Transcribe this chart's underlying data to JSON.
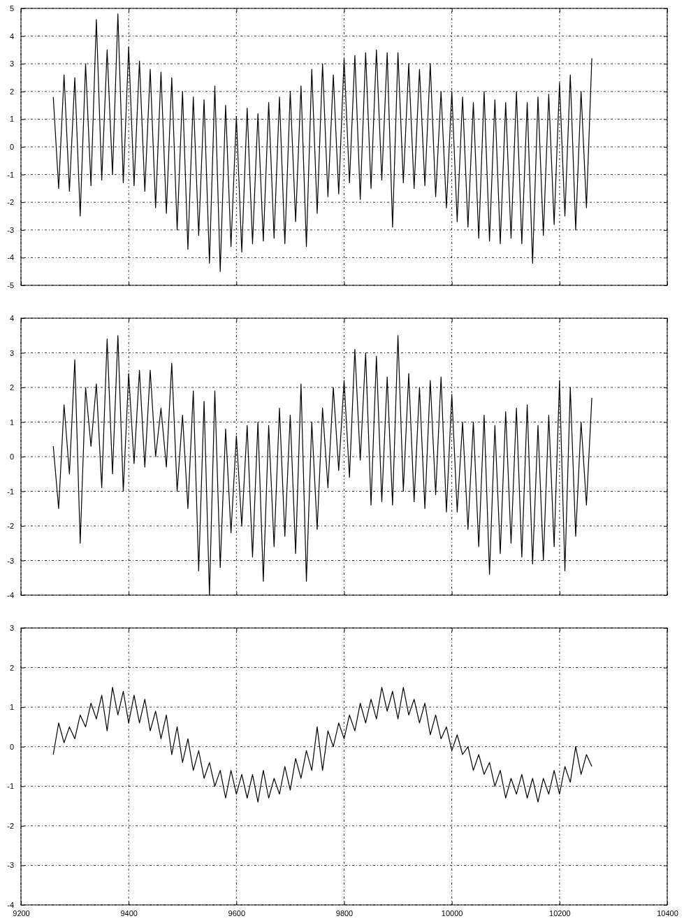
{
  "chart_data": [
    {
      "type": "line",
      "tick_labels": "y",
      "grid": true,
      "xlim": [
        9200,
        10400
      ],
      "xticks": [
        9200,
        9400,
        9600,
        9800,
        10000,
        10200,
        10400
      ],
      "ylim": [
        -5,
        5
      ],
      "yticks": [
        -5,
        -4,
        -3,
        -2,
        -1,
        0,
        1,
        2,
        3,
        4,
        5
      ],
      "x": [
        9260,
        9270,
        9280,
        9290,
        9300,
        9310,
        9320,
        9330,
        9340,
        9350,
        9360,
        9370,
        9380,
        9390,
        9400,
        9410,
        9420,
        9430,
        9440,
        9450,
        9460,
        9470,
        9480,
        9490,
        9500,
        9510,
        9520,
        9530,
        9540,
        9550,
        9560,
        9570,
        9580,
        9590,
        9600,
        9610,
        9620,
        9630,
        9640,
        9650,
        9660,
        9670,
        9680,
        9690,
        9700,
        9710,
        9720,
        9730,
        9740,
        9750,
        9760,
        9770,
        9780,
        9790,
        9800,
        9810,
        9820,
        9830,
        9840,
        9850,
        9860,
        9870,
        9880,
        9890,
        9900,
        9910,
        9920,
        9930,
        9940,
        9950,
        9960,
        9970,
        9980,
        9990,
        10000,
        10010,
        10020,
        10030,
        10040,
        10050,
        10060,
        10070,
        10080,
        10090,
        10100,
        10110,
        10120,
        10130,
        10140,
        10150,
        10160,
        10170,
        10180,
        10190,
        10200,
        10210,
        10220,
        10230,
        10240,
        10250,
        10260
      ],
      "series": [
        {
          "color": "#000000",
          "values": [
            1.8,
            -1.5,
            2.6,
            -1.6,
            2.5,
            -2.5,
            3.0,
            -1.4,
            4.6,
            -1.2,
            3.5,
            -1.0,
            4.8,
            -1.3,
            3.6,
            -1.4,
            3.1,
            -1.6,
            2.8,
            -2.2,
            2.7,
            -2.4,
            2.5,
            -3.0,
            2.0,
            -3.7,
            1.8,
            -3.2,
            1.7,
            -4.2,
            2.2,
            -4.5,
            1.5,
            -3.6,
            1.1,
            -3.8,
            1.4,
            -3.5,
            1.2,
            -3.4,
            1.6,
            -3.3,
            1.8,
            -3.5,
            2.0,
            -2.7,
            2.2,
            -3.6,
            2.8,
            -2.4,
            3.0,
            -1.8,
            2.6,
            -1.7,
            3.2,
            -1.3,
            3.3,
            -1.9,
            3.4,
            -1.5,
            3.5,
            -1.2,
            3.4,
            -2.9,
            3.4,
            -1.3,
            3.0,
            -1.5,
            2.8,
            -1.4,
            3.0,
            -1.8,
            2.0,
            -2.2,
            2.0,
            -2.7,
            1.8,
            -2.9,
            1.6,
            -3.3,
            2.0,
            -3.4,
            1.7,
            -3.5,
            1.6,
            -3.3,
            2.0,
            -3.5,
            1.6,
            -4.2,
            1.8,
            -3.2,
            1.9,
            -2.8,
            2.3,
            -2.5,
            2.6,
            -3.0,
            2.0,
            -2.2,
            3.2
          ]
        }
      ]
    },
    {
      "type": "line",
      "tick_labels": "y",
      "grid": true,
      "xlim": [
        9200,
        10400
      ],
      "xticks": [
        9200,
        9400,
        9600,
        9800,
        10000,
        10200,
        10400
      ],
      "ylim": [
        -4,
        4
      ],
      "yticks": [
        -4,
        -3,
        -2,
        -1,
        0,
        1,
        2,
        3,
        4
      ],
      "x": [
        9260,
        9270,
        9280,
        9290,
        9300,
        9310,
        9320,
        9330,
        9340,
        9350,
        9360,
        9370,
        9380,
        9390,
        9400,
        9410,
        9420,
        9430,
        9440,
        9450,
        9460,
        9470,
        9480,
        9490,
        9500,
        9510,
        9520,
        9530,
        9540,
        9550,
        9560,
        9570,
        9580,
        9590,
        9600,
        9610,
        9620,
        9630,
        9640,
        9650,
        9660,
        9670,
        9680,
        9690,
        9700,
        9710,
        9720,
        9730,
        9740,
        9750,
        9760,
        9770,
        9780,
        9790,
        9800,
        9810,
        9820,
        9830,
        9840,
        9850,
        9860,
        9870,
        9880,
        9890,
        9900,
        9910,
        9920,
        9930,
        9940,
        9950,
        9960,
        9970,
        9980,
        9990,
        10000,
        10010,
        10020,
        10030,
        10040,
        10050,
        10060,
        10070,
        10080,
        10090,
        10100,
        10110,
        10120,
        10130,
        10140,
        10150,
        10160,
        10170,
        10180,
        10190,
        10200,
        10210,
        10220,
        10230,
        10240,
        10250,
        10260
      ],
      "series": [
        {
          "color": "#000000",
          "values": [
            0.3,
            -1.5,
            1.5,
            -0.5,
            2.8,
            -2.5,
            2.0,
            0.3,
            2.1,
            -0.9,
            3.4,
            -0.5,
            3.5,
            -1.0,
            2.4,
            -0.2,
            2.5,
            -0.3,
            2.5,
            0.0,
            1.4,
            -0.3,
            2.7,
            -1.0,
            1.2,
            -1.5,
            1.9,
            -3.3,
            1.6,
            -4.0,
            1.9,
            -3.2,
            0.8,
            -2.2,
            0.6,
            -2.0,
            0.9,
            -2.9,
            1.0,
            -3.6,
            0.9,
            -2.6,
            1.4,
            -2.3,
            1.2,
            -2.8,
            2.1,
            -3.6,
            1.0,
            -2.1,
            1.4,
            -0.9,
            2.0,
            -0.4,
            2.2,
            -0.6,
            3.1,
            -0.1,
            3.0,
            -1.4,
            2.9,
            -1.3,
            2.3,
            -1.4,
            3.5,
            -1.0,
            2.4,
            -1.3,
            2.0,
            -1.5,
            2.2,
            -1.1,
            2.3,
            -1.6,
            1.8,
            -1.6,
            1.0,
            -2.1,
            1.0,
            -2.6,
            1.2,
            -3.4,
            0.9,
            -2.8,
            1.3,
            -2.5,
            1.4,
            -2.9,
            1.5,
            -3.1,
            0.9,
            -3.0,
            1.2,
            -2.6,
            2.2,
            -3.3,
            2.0,
            -2.3,
            1.0,
            -1.4,
            1.7
          ]
        }
      ]
    },
    {
      "type": "line",
      "grid": true,
      "xlim": [
        9200,
        10400
      ],
      "xticks": [
        9200,
        9400,
        9600,
        9800,
        10000,
        10200,
        10400
      ],
      "ylim": [
        -4,
        3
      ],
      "yticks": [
        -4,
        -3,
        -2,
        -1,
        0,
        1,
        2,
        3
      ],
      "x": [
        9260,
        9270,
        9280,
        9290,
        9300,
        9310,
        9320,
        9330,
        9340,
        9350,
        9360,
        9370,
        9380,
        9390,
        9400,
        9410,
        9420,
        9430,
        9440,
        9450,
        9460,
        9470,
        9480,
        9490,
        9500,
        9510,
        9520,
        9530,
        9540,
        9550,
        9560,
        9570,
        9580,
        9590,
        9600,
        9610,
        9620,
        9630,
        9640,
        9650,
        9660,
        9670,
        9680,
        9690,
        9700,
        9710,
        9720,
        9730,
        9740,
        9750,
        9760,
        9770,
        9780,
        9790,
        9800,
        9810,
        9820,
        9830,
        9840,
        9850,
        9860,
        9870,
        9880,
        9890,
        9900,
        9910,
        9920,
        9930,
        9940,
        9950,
        9960,
        9970,
        9980,
        9990,
        10000,
        10010,
        10020,
        10030,
        10040,
        10050,
        10060,
        10070,
        10080,
        10090,
        10100,
        10110,
        10120,
        10130,
        10140,
        10150,
        10160,
        10170,
        10180,
        10190,
        10200,
        10210,
        10220,
        10230,
        10240,
        10250,
        10260
      ],
      "series": [
        {
          "color": "#000000",
          "values": [
            -0.2,
            0.6,
            0.1,
            0.5,
            0.2,
            0.8,
            0.5,
            1.1,
            0.7,
            1.3,
            0.4,
            1.5,
            0.8,
            1.4,
            0.6,
            1.3,
            0.6,
            1.2,
            0.4,
            0.9,
            0.2,
            0.8,
            -0.2,
            0.5,
            -0.4,
            0.2,
            -0.6,
            -0.1,
            -0.8,
            -0.4,
            -1.0,
            -0.6,
            -1.3,
            -0.6,
            -1.2,
            -0.7,
            -1.3,
            -0.7,
            -1.4,
            -0.6,
            -1.3,
            -0.8,
            -1.2,
            -0.5,
            -1.1,
            -0.3,
            -0.8,
            -0.1,
            -0.6,
            0.5,
            -0.6,
            0.4,
            0.0,
            0.6,
            0.2,
            0.8,
            0.4,
            1.1,
            0.6,
            1.2,
            0.7,
            1.5,
            0.9,
            1.4,
            0.7,
            1.5,
            0.8,
            1.2,
            0.6,
            1.1,
            0.3,
            0.8,
            0.2,
            0.5,
            -0.1,
            0.3,
            -0.2,
            0.0,
            -0.6,
            -0.2,
            -0.7,
            -0.4,
            -1.0,
            -0.6,
            -1.3,
            -0.8,
            -1.2,
            -0.7,
            -1.3,
            -0.8,
            -1.4,
            -0.8,
            -1.2,
            -0.6,
            -1.2,
            -0.5,
            -0.9,
            0.0,
            -0.7,
            -0.2,
            -0.5
          ]
        }
      ]
    }
  ]
}
